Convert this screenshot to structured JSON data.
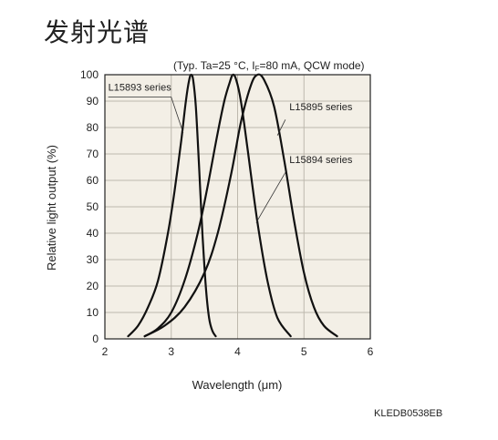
{
  "page_title": "发射光谱",
  "doc_code": "KLEDB0538EB",
  "chart_data": {
    "type": "line",
    "title": "",
    "subtitle": "(Typ. Ta=25 °C, IF=80 mA, QCW mode)",
    "subtitle_parts": [
      "(Typ. Ta=25 °C, I",
      "F",
      "=80 mA, QCW mode)"
    ],
    "xlabel": "Wavelength (μm)",
    "ylabel": "Relative light output (%)",
    "xlim": [
      2,
      6
    ],
    "ylim": [
      0,
      100
    ],
    "xticks": [
      "2",
      "3",
      "4",
      "5",
      "6"
    ],
    "yticks": [
      "0",
      "10",
      "20",
      "30",
      "40",
      "50",
      "60",
      "70",
      "80",
      "90",
      "100"
    ],
    "grid": true,
    "series": [
      {
        "name": "L15893 series",
        "x": [
          2.35,
          2.5,
          2.65,
          2.8,
          2.95,
          3.05,
          3.15,
          3.22,
          3.27,
          3.3,
          3.33,
          3.37,
          3.42,
          3.47,
          3.52,
          3.57,
          3.62,
          3.67
        ],
        "y": [
          1,
          5,
          12,
          22,
          40,
          56,
          75,
          90,
          98,
          100,
          98,
          88,
          65,
          40,
          20,
          8,
          3,
          1
        ]
      },
      {
        "name": "L15894 series",
        "x": [
          2.6,
          2.8,
          3.0,
          3.2,
          3.4,
          3.55,
          3.7,
          3.8,
          3.88,
          3.93,
          3.98,
          4.05,
          4.15,
          4.3,
          4.45,
          4.6,
          4.8
        ],
        "y": [
          1,
          4,
          10,
          22,
          40,
          58,
          78,
          90,
          97,
          100,
          98,
          90,
          72,
          44,
          22,
          8,
          1
        ]
      },
      {
        "name": "L15895 series",
        "x": [
          2.6,
          2.9,
          3.2,
          3.5,
          3.7,
          3.9,
          4.05,
          4.2,
          4.3,
          4.4,
          4.55,
          4.7,
          4.85,
          5.0,
          5.15,
          5.3,
          5.5
        ],
        "y": [
          1,
          5,
          12,
          25,
          40,
          62,
          82,
          96,
          100,
          98,
          88,
          68,
          45,
          25,
          12,
          5,
          1
        ]
      }
    ],
    "annotations": [
      {
        "series": "L15893 series",
        "text": "L15893 series"
      },
      {
        "series": "L15895 series",
        "text": "L15895 series"
      },
      {
        "series": "L15894 series",
        "text": "L15894 series"
      }
    ]
  }
}
